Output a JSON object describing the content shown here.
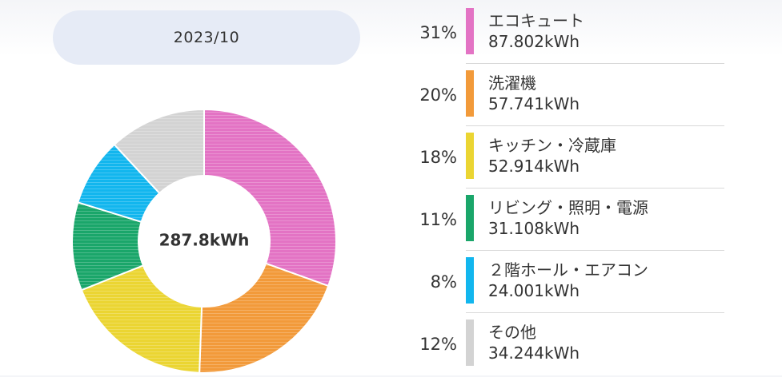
{
  "header": {
    "month": "2023/10"
  },
  "chart_data": {
    "type": "pie",
    "donut": true,
    "center_label": "287.8kWh",
    "total": 287.8,
    "unit": "kWh",
    "slices": [
      {
        "name": "エコキュート",
        "percent_label": "31%",
        "value": 87.802,
        "value_label": "87.802kWh",
        "color": "#e373c4"
      },
      {
        "name": "洗濯機",
        "percent_label": "20%",
        "value": 57.741,
        "value_label": "57.741kWh",
        "color": "#f29a3a"
      },
      {
        "name": "キッチン・冷蔵庫",
        "percent_label": "18%",
        "value": 52.914,
        "value_label": "52.914kWh",
        "color": "#ebd532"
      },
      {
        "name": "リビング・照明・電源",
        "percent_label": "11%",
        "value": 31.108,
        "value_label": "31.108kWh",
        "color": "#1aa66a"
      },
      {
        "name": "２階ホール・エアコン",
        "percent_label": "8%",
        "value": 24.001,
        "value_label": "24.001kWh",
        "color": "#12b6ee"
      },
      {
        "name": "その他",
        "percent_label": "12%",
        "value": 34.244,
        "value_label": "34.244kWh",
        "color": "#d3d3d3"
      }
    ]
  }
}
